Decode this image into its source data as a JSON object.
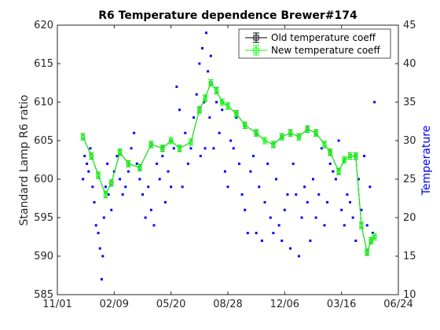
{
  "chart_data": {
    "type": "scatter",
    "title": "R6 Temperature dependence Brewer#174",
    "ylabel_left": "Standard Lamp R6 ratio",
    "ylabel_right": "Temperature",
    "xlabel": "",
    "x_ticks": [
      "11/01",
      "02/09",
      "05/20",
      "08/28",
      "12/06",
      "03/16",
      "06/24"
    ],
    "x_tick_days": [
      0,
      100,
      200,
      300,
      400,
      500,
      600
    ],
    "xlim": [
      0,
      600
    ],
    "ylim_left": [
      585,
      620
    ],
    "ylim_right": [
      10,
      45
    ],
    "y_ticks_left": [
      "585",
      "590",
      "595",
      "600",
      "605",
      "610",
      "615",
      "620"
    ],
    "y_ticks_right": [
      "10",
      "15",
      "20",
      "25",
      "30",
      "35",
      "40",
      "45"
    ],
    "grid": false,
    "legend_position": "top-right",
    "colors": {
      "old": "#000000",
      "new": "#00ff00",
      "temperature": "#0000ff"
    },
    "series": [
      {
        "name": "Old temperature coeff",
        "axis": "left",
        "style": "line-errorbar",
        "x": [
          45,
          60,
          72,
          85,
          95,
          110,
          125,
          145,
          165,
          185,
          200,
          215,
          235,
          250,
          260,
          270,
          280,
          290,
          300,
          315,
          330,
          350,
          365,
          380,
          395,
          410,
          425,
          440,
          455,
          470,
          480,
          495,
          505,
          515,
          525,
          535,
          545,
          552,
          558
        ],
        "y": [
          605.5,
          603,
          600.5,
          598,
          599.5,
          603.5,
          602,
          601.5,
          604.5,
          604,
          605,
          604,
          604.8,
          609,
          610.5,
          612.5,
          611.5,
          610,
          609.5,
          608.5,
          607,
          606,
          605,
          604.5,
          605.5,
          606,
          605.5,
          606.5,
          606,
          604.5,
          603.5,
          601,
          602.5,
          603,
          603,
          594,
          590.5,
          592,
          592.5
        ]
      },
      {
        "name": "New temperature coeff",
        "axis": "left",
        "style": "line-errorbar",
        "x": [
          45,
          60,
          72,
          85,
          95,
          110,
          125,
          145,
          165,
          185,
          200,
          215,
          235,
          250,
          260,
          270,
          280,
          290,
          300,
          315,
          330,
          350,
          365,
          380,
          395,
          410,
          425,
          440,
          455,
          470,
          480,
          495,
          505,
          515,
          525,
          535,
          545,
          552,
          558
        ],
        "y": [
          605.5,
          603,
          600.5,
          598,
          599.5,
          603.5,
          602,
          601.5,
          604.5,
          604,
          605,
          604,
          604.8,
          609,
          610.5,
          612.5,
          611.5,
          610,
          609.5,
          608.5,
          607,
          606,
          605,
          604.5,
          605.5,
          606,
          605.5,
          606.5,
          606,
          604.5,
          603.5,
          601,
          602.5,
          603,
          603,
          594,
          590.5,
          592,
          592.5
        ]
      },
      {
        "name": "Temperature",
        "axis": "right",
        "style": "points",
        "x": [
          45,
          48,
          52,
          55,
          58,
          62,
          65,
          68,
          72,
          75,
          78,
          80,
          82,
          85,
          88,
          90,
          95,
          100,
          105,
          110,
          115,
          120,
          125,
          130,
          135,
          140,
          145,
          150,
          155,
          160,
          165,
          170,
          175,
          180,
          185,
          190,
          195,
          200,
          205,
          210,
          215,
          220,
          225,
          230,
          235,
          240,
          245,
          250,
          252,
          255,
          258,
          260,
          262,
          265,
          268,
          270,
          275,
          280,
          285,
          290,
          295,
          300,
          305,
          310,
          315,
          320,
          325,
          330,
          335,
          340,
          345,
          350,
          355,
          360,
          365,
          370,
          375,
          380,
          385,
          390,
          395,
          400,
          405,
          410,
          415,
          420,
          425,
          430,
          435,
          440,
          445,
          450,
          455,
          460,
          465,
          470,
          475,
          480,
          485,
          490,
          495,
          500,
          505,
          510,
          515,
          520,
          525,
          530,
          535,
          540,
          545,
          550,
          555,
          558
        ],
        "y": [
          25,
          28,
          27,
          26,
          29,
          24,
          22,
          19,
          18,
          16,
          12,
          15,
          20,
          24,
          27,
          23,
          21,
          26,
          28,
          25,
          23,
          24,
          26,
          29,
          31,
          27,
          25,
          23,
          20,
          24,
          21,
          19,
          27,
          25,
          28,
          22,
          26,
          24,
          29,
          37,
          34,
          24,
          31,
          27,
          29,
          33,
          36,
          40,
          28,
          42,
          35,
          29,
          44,
          39,
          33,
          41,
          29,
          35,
          31,
          34,
          26,
          24,
          30,
          29,
          33,
          27,
          23,
          21,
          18,
          26,
          28,
          18,
          24,
          17,
          22,
          27,
          20,
          18,
          25,
          19,
          17,
          21,
          23,
          16,
          27,
          23,
          15,
          20,
          24,
          22,
          17,
          25,
          20,
          23,
          29,
          19,
          22,
          27,
          26,
          25,
          30,
          21,
          19,
          23,
          22,
          20,
          17,
          25,
          21,
          28,
          19,
          24,
          18,
          35
        ]
      }
    ]
  },
  "legend": {
    "items": [
      {
        "label": "Old temperature coeff"
      },
      {
        "label": "New temperature coeff"
      }
    ]
  }
}
